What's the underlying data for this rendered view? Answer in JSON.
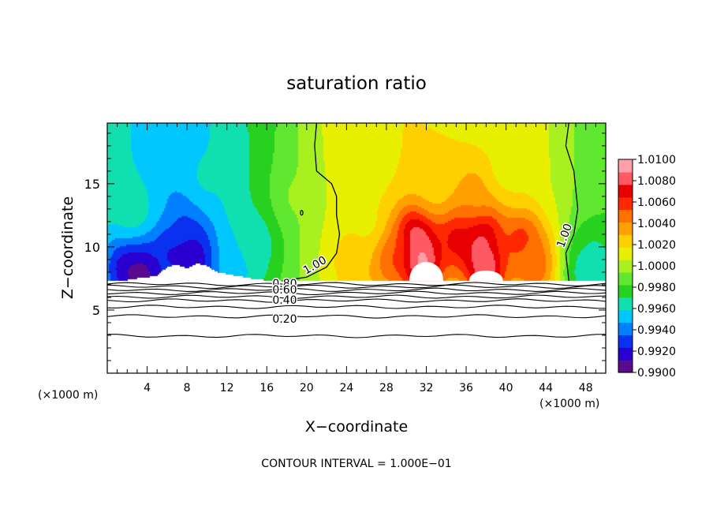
{
  "chart_data": {
    "type": "heatmap",
    "title": "saturation ratio",
    "xlabel": "X−coordinate",
    "ylabel": "Z−coordinate",
    "x_unit_left": "(×1000 m)",
    "x_unit_right": "(×1000 m)",
    "xlim": [
      0,
      50
    ],
    "ylim": [
      0,
      19.8
    ],
    "x_ticks": [
      "4",
      "8",
      "12",
      "16",
      "20",
      "24",
      "28",
      "32",
      "36",
      "40",
      "44",
      "48"
    ],
    "x_tick_values": [
      4,
      8,
      12,
      16,
      20,
      24,
      28,
      32,
      36,
      40,
      44,
      48
    ],
    "y_ticks": [
      "5",
      "10",
      "15"
    ],
    "y_tick_values": [
      5,
      10,
      15
    ],
    "footer": "CONTOUR INTERVAL = 1.000E−01",
    "colorbar": {
      "min": 0.99,
      "max": 1.01,
      "labels": [
        "1.0100",
        "1.0080",
        "1.0060",
        "1.0040",
        "1.0020",
        "1.0000",
        "0.9980",
        "0.9960",
        "0.9940",
        "0.9920",
        "0.9900"
      ],
      "label_values": [
        1.01,
        1.008,
        1.006,
        1.004,
        1.002,
        1.0,
        0.998,
        0.996,
        0.994,
        0.992,
        0.99
      ],
      "colors": [
        "#5a0a8c",
        "#2a00d0",
        "#0a30f0",
        "#0080ff",
        "#00c8ff",
        "#10e0b0",
        "#28d020",
        "#60e830",
        "#a8f020",
        "#e8f000",
        "#ffd000",
        "#ffa000",
        "#ff7000",
        "#ff2800",
        "#e80000",
        "#ff5a64",
        "#ffa0a8"
      ]
    },
    "contour_labels": [
      {
        "text": "1.00",
        "x": 21.0,
        "z": 8.3,
        "angle": -30
      },
      {
        "text": "1.00",
        "x": 46.2,
        "z": 10.8,
        "angle": -70
      },
      {
        "text": "0.80",
        "x": 17.8,
        "z": 6.8,
        "angle": 0
      },
      {
        "text": "0.60",
        "x": 17.8,
        "z": 6.3,
        "angle": 0
      },
      {
        "text": "0.40",
        "x": 17.8,
        "z": 5.5,
        "angle": 0
      },
      {
        "text": "0.20",
        "x": 17.8,
        "z": 4.0,
        "angle": 0
      }
    ],
    "cloud_base_z": [
      [
        0,
        7.3
      ],
      [
        2,
        7.35
      ],
      [
        3,
        7.5
      ],
      [
        5,
        7.7
      ],
      [
        6,
        8.4
      ],
      [
        7,
        8.6
      ],
      [
        8,
        8.3
      ],
      [
        9,
        8.7
      ],
      [
        10,
        8.5
      ],
      [
        11,
        8.0
      ],
      [
        13,
        7.7
      ],
      [
        15,
        7.4
      ],
      [
        17,
        7.3
      ],
      [
        50,
        7.3
      ]
    ],
    "zero_contour_1": [
      [
        21.0,
        19.8
      ],
      [
        20.8,
        18.0
      ],
      [
        21.0,
        16.0
      ],
      [
        22.5,
        15.0
      ],
      [
        23.0,
        14.0
      ],
      [
        23.0,
        12.5
      ],
      [
        23.3,
        11.0
      ],
      [
        23.0,
        9.5
      ],
      [
        22.0,
        8.4
      ],
      [
        20.0,
        7.6
      ],
      [
        17.5,
        7.3
      ]
    ],
    "zero_contour_2": [
      [
        46.3,
        19.8
      ],
      [
        46.0,
        18.0
      ],
      [
        46.8,
        16.0
      ],
      [
        47.2,
        13.0
      ],
      [
        46.8,
        11.0
      ],
      [
        46.0,
        9.5
      ],
      [
        46.3,
        7.3
      ]
    ],
    "dry_contours_z": [
      7.05,
      6.85,
      6.6,
      6.35,
      6.05,
      5.75,
      5.25,
      4.5,
      2.95
    ],
    "white_patches": [
      [
        32.0,
        9.3
      ],
      [
        38.0,
        8.4
      ]
    ],
    "field_blobs": [
      {
        "x": 2.0,
        "z": 8.5,
        "v": 0.992
      },
      {
        "x": 3.5,
        "z": 8.0,
        "v": 0.9905
      },
      {
        "x": 6.5,
        "z": 10.0,
        "v": 0.992
      },
      {
        "x": 6.0,
        "z": 14.5,
        "v": 0.995
      },
      {
        "x": 8.0,
        "z": 12.0,
        "v": 0.9935
      },
      {
        "x": 9.0,
        "z": 9.0,
        "v": 0.9915
      },
      {
        "x": 10.0,
        "z": 15.5,
        "v": 0.996
      },
      {
        "x": 13.0,
        "z": 9.0,
        "v": 0.995
      },
      {
        "x": 2.5,
        "z": 13.0,
        "v": 0.9965
      },
      {
        "x": 15.0,
        "z": 10.5,
        "v": 0.9965
      },
      {
        "x": 31.0,
        "z": 10.8,
        "v": 1.0085
      },
      {
        "x": 31.5,
        "z": 9.0,
        "v": 1.0095
      },
      {
        "x": 28.0,
        "z": 9.5,
        "v": 1.006
      },
      {
        "x": 35.0,
        "z": 11.0,
        "v": 1.007
      },
      {
        "x": 37.5,
        "z": 11.5,
        "v": 1.008
      },
      {
        "x": 37.0,
        "z": 14.0,
        "v": 1.004
      },
      {
        "x": 38.0,
        "z": 8.5,
        "v": 1.009
      },
      {
        "x": 41.5,
        "z": 10.5,
        "v": 1.006
      },
      {
        "x": 43.0,
        "z": 8.5,
        "v": 1.005
      },
      {
        "x": 33.0,
        "z": 15.0,
        "v": 1.0025
      },
      {
        "x": 25.0,
        "z": 8.8,
        "v": 1.003
      },
      {
        "x": 26.0,
        "z": 12.0,
        "v": 1.0015
      },
      {
        "x": 40.0,
        "z": 16.0,
        "v": 1.0015
      },
      {
        "x": 48.5,
        "z": 8.0,
        "v": 0.9955
      },
      {
        "x": 49.0,
        "z": 9.5,
        "v": 0.997
      },
      {
        "x": 19.0,
        "z": 14.0,
        "v": 0.9995
      }
    ]
  }
}
